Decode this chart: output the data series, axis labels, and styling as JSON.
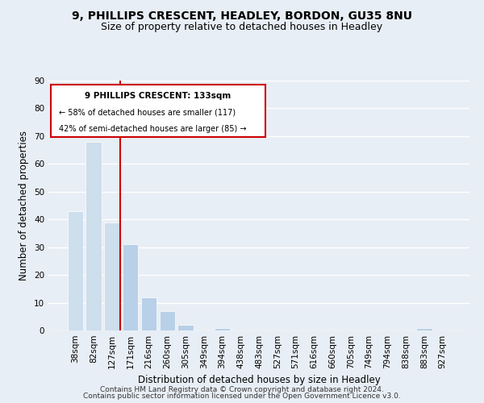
{
  "title1": "9, PHILLIPS CRESCENT, HEADLEY, BORDON, GU35 8NU",
  "title2": "Size of property relative to detached houses in Headley",
  "xlabel": "Distribution of detached houses by size in Headley",
  "ylabel": "Number of detached properties",
  "categories": [
    "38sqm",
    "82sqm",
    "127sqm",
    "171sqm",
    "216sqm",
    "260sqm",
    "305sqm",
    "349sqm",
    "394sqm",
    "438sqm",
    "483sqm",
    "527sqm",
    "571sqm",
    "616sqm",
    "660sqm",
    "705sqm",
    "749sqm",
    "794sqm",
    "838sqm",
    "883sqm",
    "927sqm"
  ],
  "values": [
    43,
    68,
    39,
    31,
    12,
    7,
    2,
    0,
    1,
    0,
    0,
    0,
    0,
    0,
    0,
    0,
    0,
    0,
    0,
    1,
    0
  ],
  "bar_color_normal": "#b8d0e8",
  "bar_color_highlight": "#cddeed",
  "highlight_index": 2,
  "vline_color": "#cc0000",
  "ylim": [
    0,
    90
  ],
  "yticks": [
    0,
    10,
    20,
    30,
    40,
    50,
    60,
    70,
    80,
    90
  ],
  "annotation_box_text1": "9 PHILLIPS CRESCENT: 133sqm",
  "annotation_line1": "← 58% of detached houses are smaller (117)",
  "annotation_line2": "42% of semi-detached houses are larger (85) →",
  "annotation_box_color": "#ffffff",
  "annotation_box_edgecolor": "#cc0000",
  "footer1": "Contains HM Land Registry data © Crown copyright and database right 2024.",
  "footer2": "Contains public sector information licensed under the Open Government Licence v3.0.",
  "background_color": "#e8eef5",
  "plot_background": "#e8eef5",
  "grid_color": "#ffffff",
  "title_fontsize": 10,
  "subtitle_fontsize": 9,
  "axis_label_fontsize": 8.5,
  "tick_fontsize": 7.5,
  "footer_fontsize": 6.5
}
